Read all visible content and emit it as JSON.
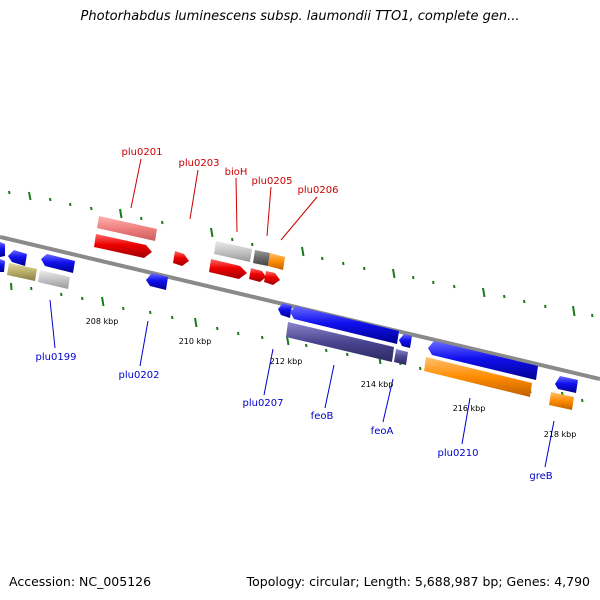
{
  "header": {
    "title": "Photorhabdus luminescens subsp. laumondii TTO1, complete gen..."
  },
  "footer": {
    "accession": "Accession: NC_005126",
    "stats": "Topology: circular; Length: 5,688,987 bp; Genes: 4,790"
  },
  "colors": {
    "forward_gene": "#ee0000",
    "forward_gene_light": "#f08080",
    "reverse_gene": "#1010ee",
    "reverse_gene_dark": "#4a4590",
    "orange_feature": "#ff8c00",
    "olive_feature": "#b8ad68",
    "grey_feature": "#c4c4c4",
    "dark_grey_feature": "#6a6a6a",
    "tick_green": "#1a7a1a",
    "backbone": "#8a8a8a"
  },
  "scale_labels": [
    "208 kbp",
    "210 kbp",
    "212 kbp",
    "214 kbp",
    "216 kbp",
    "218 kbp"
  ],
  "top_labels": [
    "plu0201",
    "plu0203",
    "bioH",
    "plu0205",
    "plu0206"
  ],
  "bottom_labels": [
    "plu0199",
    "plu0202",
    "plu0207",
    "feoB",
    "feoA",
    "plu0210",
    "greB"
  ]
}
